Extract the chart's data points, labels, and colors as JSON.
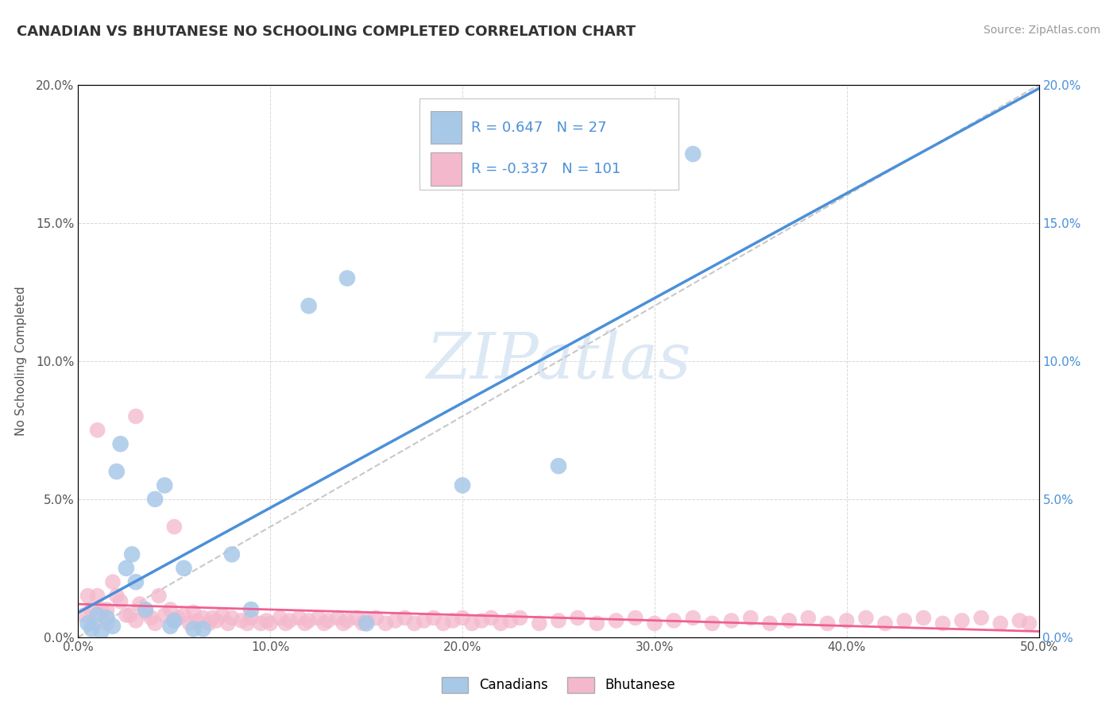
{
  "title": "CANADIAN VS BHUTANESE NO SCHOOLING COMPLETED CORRELATION CHART",
  "source": "Source: ZipAtlas.com",
  "ylabel": "No Schooling Completed",
  "xlim": [
    0.0,
    0.5
  ],
  "ylim": [
    0.0,
    0.2
  ],
  "canadian_R": 0.647,
  "canadian_N": 27,
  "bhutanese_R": -0.337,
  "bhutanese_N": 101,
  "canadian_color": "#a8c8e8",
  "bhutanese_color": "#f4b8cc",
  "canadian_line_color": "#4a90d9",
  "bhutanese_line_color": "#f06090",
  "diag_line_color": "#c8c8c8",
  "watermark_color": "#dde8f5",
  "background_color": "#ffffff",
  "grid_color": "#d8d8d8",
  "canadians_scatter_x": [
    0.005,
    0.007,
    0.01,
    0.012,
    0.015,
    0.018,
    0.02,
    0.022,
    0.025,
    0.028,
    0.03,
    0.035,
    0.04,
    0.045,
    0.048,
    0.05,
    0.055,
    0.06,
    0.065,
    0.08,
    0.09,
    0.12,
    0.14,
    0.15,
    0.2,
    0.25,
    0.32
  ],
  "canadians_scatter_y": [
    0.005,
    0.003,
    0.008,
    0.002,
    0.007,
    0.004,
    0.06,
    0.07,
    0.025,
    0.03,
    0.02,
    0.01,
    0.05,
    0.055,
    0.004,
    0.006,
    0.025,
    0.003,
    0.003,
    0.03,
    0.01,
    0.12,
    0.13,
    0.005,
    0.055,
    0.062,
    0.175
  ],
  "bhutanese_scatter_x": [
    0.003,
    0.005,
    0.007,
    0.008,
    0.01,
    0.012,
    0.015,
    0.015,
    0.018,
    0.02,
    0.022,
    0.025,
    0.027,
    0.03,
    0.032,
    0.035,
    0.038,
    0.04,
    0.042,
    0.045,
    0.048,
    0.05,
    0.052,
    0.055,
    0.058,
    0.06,
    0.062,
    0.065,
    0.068,
    0.07,
    0.072,
    0.075,
    0.078,
    0.08,
    0.085,
    0.088,
    0.09,
    0.095,
    0.098,
    0.1,
    0.105,
    0.108,
    0.11,
    0.115,
    0.118,
    0.12,
    0.125,
    0.128,
    0.13,
    0.135,
    0.138,
    0.14,
    0.145,
    0.148,
    0.15,
    0.155,
    0.16,
    0.165,
    0.17,
    0.175,
    0.18,
    0.185,
    0.19,
    0.195,
    0.2,
    0.205,
    0.21,
    0.215,
    0.22,
    0.225,
    0.23,
    0.24,
    0.25,
    0.26,
    0.27,
    0.28,
    0.29,
    0.3,
    0.31,
    0.32,
    0.33,
    0.34,
    0.35,
    0.36,
    0.37,
    0.38,
    0.39,
    0.4,
    0.41,
    0.42,
    0.43,
    0.44,
    0.45,
    0.46,
    0.47,
    0.48,
    0.49,
    0.495,
    0.01,
    0.03,
    0.05
  ],
  "bhutanese_scatter_y": [
    0.008,
    0.015,
    0.01,
    0.005,
    0.015,
    0.01,
    0.01,
    0.005,
    0.02,
    0.015,
    0.013,
    0.008,
    0.008,
    0.006,
    0.012,
    0.009,
    0.007,
    0.005,
    0.015,
    0.008,
    0.01,
    0.006,
    0.007,
    0.008,
    0.005,
    0.009,
    0.006,
    0.007,
    0.005,
    0.007,
    0.006,
    0.008,
    0.005,
    0.007,
    0.006,
    0.005,
    0.007,
    0.005,
    0.006,
    0.005,
    0.007,
    0.005,
    0.006,
    0.007,
    0.005,
    0.006,
    0.007,
    0.005,
    0.006,
    0.007,
    0.005,
    0.006,
    0.007,
    0.005,
    0.006,
    0.007,
    0.005,
    0.006,
    0.007,
    0.005,
    0.006,
    0.007,
    0.005,
    0.006,
    0.007,
    0.005,
    0.006,
    0.007,
    0.005,
    0.006,
    0.007,
    0.005,
    0.006,
    0.007,
    0.005,
    0.006,
    0.007,
    0.005,
    0.006,
    0.007,
    0.005,
    0.006,
    0.007,
    0.005,
    0.006,
    0.007,
    0.005,
    0.006,
    0.007,
    0.005,
    0.006,
    0.007,
    0.005,
    0.006,
    0.007,
    0.005,
    0.006,
    0.005,
    0.075,
    0.08,
    0.04
  ],
  "legend_R_label_color": "#333333",
  "legend_N_value_color": "#4a90d9",
  "title_fontsize": 13,
  "source_fontsize": 10,
  "tick_fontsize": 11,
  "ylabel_fontsize": 11
}
